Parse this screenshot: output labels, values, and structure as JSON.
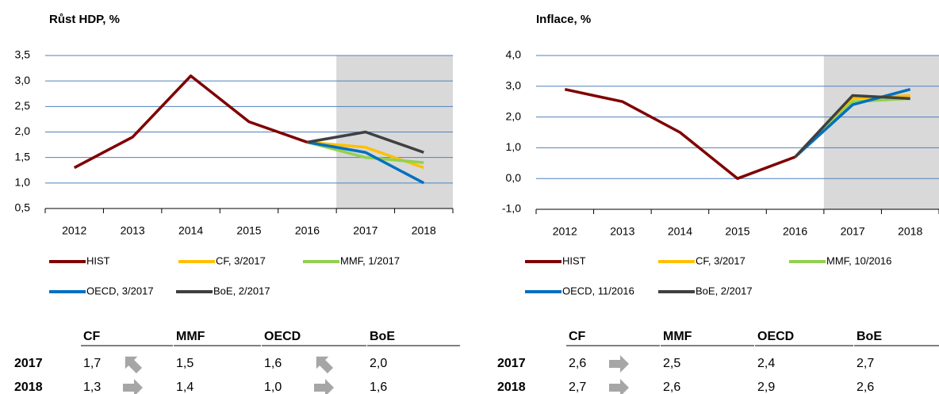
{
  "chart_data": [
    {
      "type": "line",
      "title": "Růst HDP, %",
      "categories": [
        "2012",
        "2013",
        "2014",
        "2015",
        "2016",
        "2017",
        "2018"
      ],
      "ylim": [
        0.5,
        3.5
      ],
      "yticks": [
        {
          "value": 0.5,
          "label": "0,5"
        },
        {
          "value": 1.0,
          "label": "1,0"
        },
        {
          "value": 1.5,
          "label": "1,5"
        },
        {
          "value": 2.0,
          "label": "2,0"
        },
        {
          "value": 2.5,
          "label": "2,5"
        },
        {
          "value": 3.0,
          "label": "3,0"
        },
        {
          "value": 3.5,
          "label": "3,5"
        }
      ],
      "grid": true,
      "forecast_shade": true,
      "series": [
        {
          "name": "HIST",
          "color": "#7f0000",
          "values": [
            1.3,
            1.9,
            3.1,
            2.2,
            1.8,
            null,
            null
          ]
        },
        {
          "name": "CF, 3/2017",
          "color": "#ffc000",
          "values": [
            null,
            null,
            null,
            null,
            1.8,
            1.7,
            1.3
          ]
        },
        {
          "name": "MMF, 1/2017",
          "color": "#92d050",
          "values": [
            null,
            null,
            null,
            null,
            1.8,
            1.5,
            1.4
          ]
        },
        {
          "name": "OECD, 3/2017",
          "color": "#0070c0",
          "values": [
            null,
            null,
            null,
            null,
            1.8,
            1.6,
            1.0
          ]
        },
        {
          "name": "BoE, 2/2017",
          "color": "#404040",
          "values": [
            null,
            null,
            null,
            null,
            1.8,
            2.0,
            1.6
          ]
        }
      ]
    },
    {
      "type": "line",
      "title": "Inflace, %",
      "categories": [
        "2012",
        "2013",
        "2014",
        "2015",
        "2016",
        "2017",
        "2018"
      ],
      "ylim": [
        -1.0,
        4.0
      ],
      "yticks": [
        {
          "value": -1.0,
          "label": "-1,0"
        },
        {
          "value": 0.0,
          "label": "0,0"
        },
        {
          "value": 1.0,
          "label": "1,0"
        },
        {
          "value": 2.0,
          "label": "2,0"
        },
        {
          "value": 3.0,
          "label": "3,0"
        },
        {
          "value": 4.0,
          "label": "4,0"
        }
      ],
      "grid": true,
      "forecast_shade": true,
      "series": [
        {
          "name": "HIST",
          "color": "#7f0000",
          "values": [
            2.9,
            2.5,
            1.5,
            0.0,
            0.7,
            null,
            null
          ]
        },
        {
          "name": "CF, 3/2017",
          "color": "#ffc000",
          "values": [
            null,
            null,
            null,
            null,
            0.7,
            2.6,
            2.7
          ]
        },
        {
          "name": "MMF, 10/2016",
          "color": "#92d050",
          "values": [
            null,
            null,
            null,
            null,
            0.7,
            2.5,
            2.6
          ]
        },
        {
          "name": "OECD, 11/2016",
          "color": "#0070c0",
          "values": [
            null,
            null,
            null,
            null,
            0.7,
            2.4,
            2.9
          ]
        },
        {
          "name": "BoE, 2/2017",
          "color": "#404040",
          "values": [
            null,
            null,
            null,
            null,
            0.7,
            2.7,
            2.6
          ]
        }
      ]
    }
  ],
  "tables": [
    {
      "columns": [
        "CF",
        "MMF",
        "OECD",
        "BoE"
      ],
      "rows": [
        {
          "label": "2017",
          "cells": [
            "1,7",
            "1,5",
            "1,6",
            "2,0"
          ]
        },
        {
          "label": "2018",
          "cells": [
            "1,3",
            "1,4",
            "1,0",
            "1,6"
          ]
        }
      ]
    },
    {
      "columns": [
        "CF",
        "MMF",
        "OECD",
        "BoE"
      ],
      "rows": [
        {
          "label": "2017",
          "cells": [
            "2,6",
            "2,5",
            "2,4",
            "2,7"
          ]
        },
        {
          "label": "2018",
          "cells": [
            "2,7",
            "2,6",
            "2,9",
            "2,6"
          ]
        }
      ]
    }
  ]
}
